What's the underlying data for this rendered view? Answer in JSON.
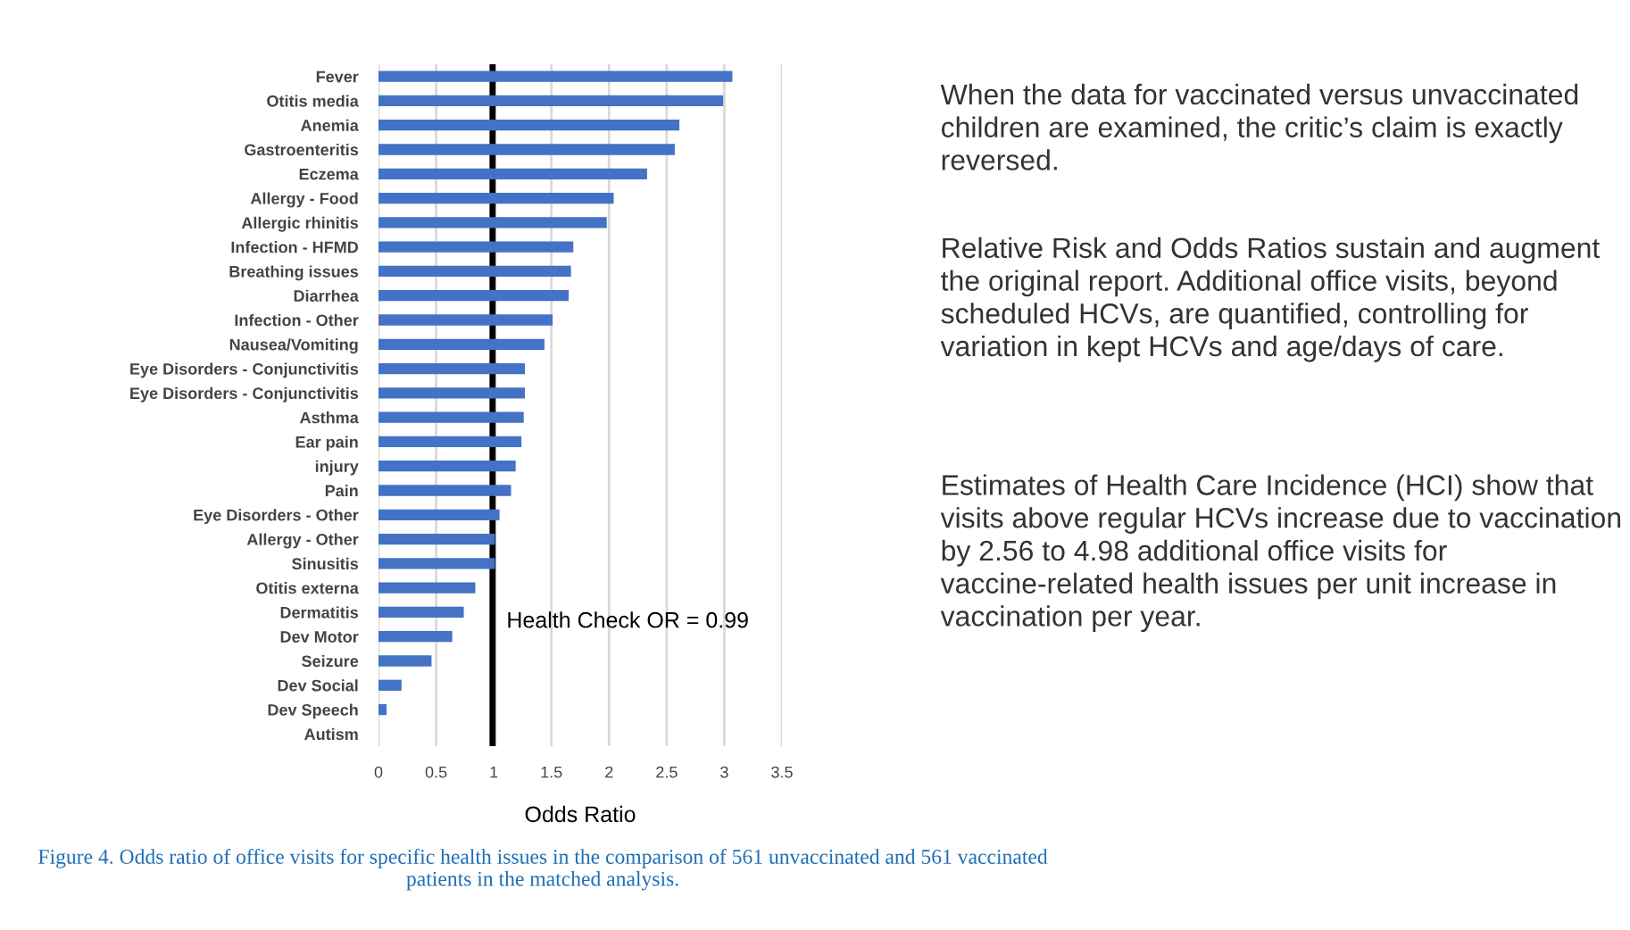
{
  "chart_data": {
    "type": "bar",
    "orientation": "horizontal",
    "xlabel": "Odds Ratio",
    "categories": [
      "Fever",
      "Otitis media",
      "Anemia",
      "Gastroenteritis",
      "Eczema",
      "Allergy - Food",
      "Allergic rhinitis",
      "Infection - HFMD",
      "Breathing issues",
      "Diarrhea",
      "Infection - Other",
      "Nausea/Vomiting",
      "Eye Disorders - Conjunctivitis",
      "Eye Disorders - Conjunctivitis",
      "Asthma",
      "Ear pain",
      "injury",
      "Pain",
      "Eye Disorders - Other",
      "Allergy - Other",
      "Sinusitis",
      "Otitis externa",
      "Dermatitis",
      "Dev Motor",
      "Seizure",
      "Dev Social",
      "Dev Speech",
      "Autism"
    ],
    "values": [
      3.07,
      2.99,
      2.61,
      2.57,
      2.33,
      2.04,
      1.98,
      1.69,
      1.67,
      1.65,
      1.51,
      1.44,
      1.27,
      1.27,
      1.26,
      1.24,
      1.19,
      1.15,
      1.05,
      1.01,
      1.01,
      0.84,
      0.74,
      0.64,
      0.46,
      0.2,
      0.07,
      0
    ],
    "color": "#4472c4",
    "xlim": [
      0,
      3.5
    ],
    "xticks": [
      0,
      0.5,
      1,
      1.5,
      2,
      2.5,
      3,
      3.5
    ],
    "grid": "x",
    "ref_lines": [
      {
        "axis": "x",
        "value": 0.99,
        "label": "Health Check OR = 0.99",
        "color": "#000000"
      }
    ],
    "annotations": [
      "When the data for vaccinated versus unvaccinated children are examined, the critic’s claim is exactly reversed.",
      "Relative Risk and Odds Ratios sustain and augment the original report. Additional office visits, beyond scheduled HCVs, are quantified, controlling for variation in kept HCVs and age/days of care.",
      "Estimates of Health Care Incidence (HCI) show that visits above regular HCVs increase due to vaccination by 2.56 to 4.98 additional office visits for vaccine-related health issues per unit increase in vaccination per year.",
      "Figure 4. Odds ratio of office visits for specific health issues in the comparison of 561 unvaccinated and 561 vaccinated patients in the matched analysis."
    ]
  }
}
